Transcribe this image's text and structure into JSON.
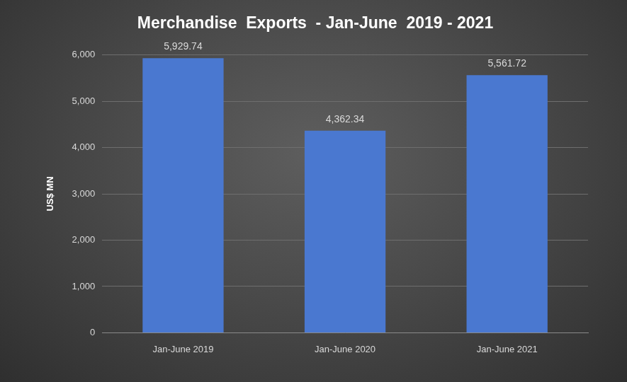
{
  "chart_data": {
    "type": "bar",
    "title": "Merchandise  Exports  - Jan-June  2019 - 2021",
    "y_label": "US$ MN",
    "categories": [
      "Jan-June 2019",
      "Jan-June 2020",
      "Jan-June 2021"
    ],
    "values": [
      5929.74,
      4362.34,
      5561.72
    ],
    "value_labels": [
      "5,929.74",
      "4,362.34",
      "5,561.72"
    ],
    "color": "#4a78d0",
    "ylim": [
      0,
      6000
    ],
    "yticks": [
      0,
      {
        "value": 1000,
        "label": "1,000"
      },
      {
        "value": 2000,
        "label": "2,000"
      },
      {
        "value": 3000,
        "label": "3,000"
      },
      {
        "value": 4000,
        "label": "4,000"
      },
      {
        "value": 5000,
        "label": "5,000"
      },
      {
        "value": 6000,
        "label": "6,000"
      }
    ],
    "grid": true,
    "data_labels": true
  }
}
